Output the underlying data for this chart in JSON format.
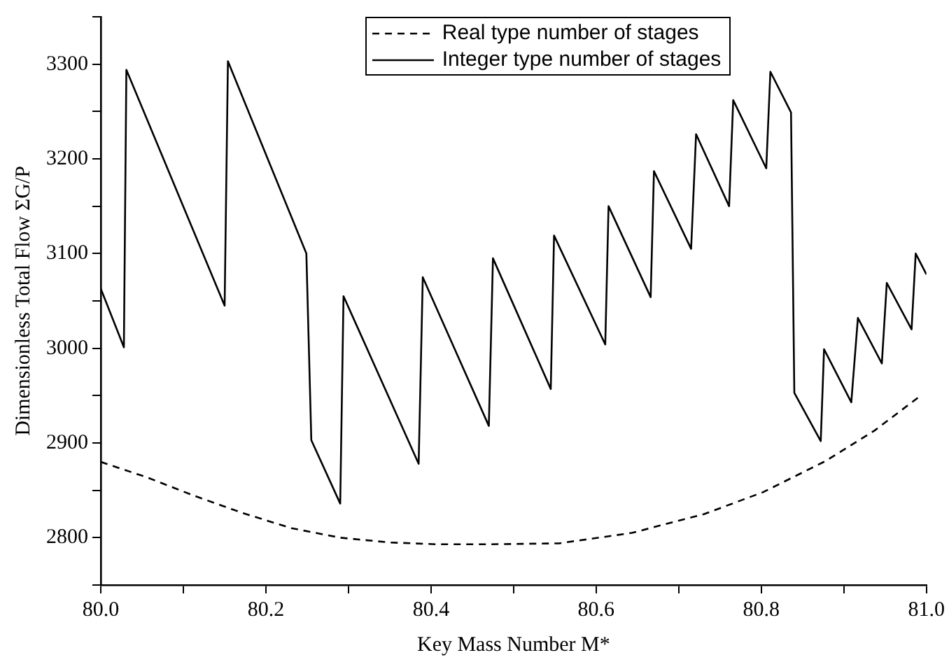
{
  "chart_data": {
    "type": "line",
    "xlabel": "Key Mass Number M*",
    "ylabel": "Dimensionless Total Flow ΣG/P",
    "xlim": [
      80.0,
      81.0
    ],
    "xticks": [
      {
        "value": 80.0,
        "label": "80.0"
      },
      {
        "value": 80.1,
        "label": null
      },
      {
        "value": 80.2,
        "label": "80.2"
      },
      {
        "value": 80.3,
        "label": null
      },
      {
        "value": 80.4,
        "label": "80.4"
      },
      {
        "value": 80.5,
        "label": null
      },
      {
        "value": 80.6,
        "label": "80.6"
      },
      {
        "value": 80.7,
        "label": null
      },
      {
        "value": 80.8,
        "label": "80.8"
      },
      {
        "value": 80.9,
        "label": null
      },
      {
        "value": 81.0,
        "label": "81.0"
      }
    ],
    "ylim": [
      2750,
      3350
    ],
    "yticks": [
      {
        "value": 2750,
        "label": null
      },
      2800,
      {
        "value": 2850,
        "label": null
      },
      2900,
      {
        "value": 2950,
        "label": null
      },
      3000,
      {
        "value": 3050,
        "label": null
      },
      3100,
      {
        "value": 3150,
        "label": null
      },
      3200,
      {
        "value": 3250,
        "label": null
      },
      3300,
      {
        "value": 3350,
        "label": null
      }
    ],
    "grid": false,
    "legend": "top right",
    "marker": "none",
    "series": [
      {
        "name": "Real type number of stages",
        "color": "#000000",
        "line_style": "dashed",
        "x": [
          80.0,
          80.055,
          80.114,
          80.172,
          80.231,
          80.29,
          80.349,
          80.408,
          80.466,
          80.555,
          80.643,
          80.731,
          80.802,
          80.878,
          80.937,
          80.99
        ],
        "values": [
          2880,
          2864,
          2844,
          2826,
          2810,
          2800,
          2795,
          2793,
          2793,
          2794,
          2805,
          2825,
          2848,
          2881,
          2913,
          2948
        ]
      },
      {
        "name": "Integer type number of stages",
        "color": "#000000",
        "line_style": "solid",
        "x": [
          80.0,
          80.028,
          80.031,
          80.15,
          80.154,
          80.249,
          80.255,
          80.29,
          80.294,
          80.385,
          80.39,
          80.47,
          80.475,
          80.545,
          80.549,
          80.611,
          80.615,
          80.666,
          80.67,
          80.715,
          80.721,
          80.761,
          80.766,
          80.806,
          80.811,
          80.836,
          80.84,
          80.872,
          80.876,
          80.909,
          80.917,
          80.946,
          80.952,
          80.982,
          80.987,
          81.0
        ],
        "values": [
          3063,
          3001,
          3294,
          3045,
          3303,
          3100,
          2903,
          2836,
          3055,
          2878,
          3075,
          2918,
          3095,
          2957,
          3119,
          3004,
          3150,
          3054,
          3187,
          3105,
          3226,
          3150,
          3262,
          3190,
          3292,
          3249,
          2953,
          2902,
          2999,
          2943,
          3032,
          2984,
          3069,
          3020,
          3100,
          3078
        ]
      }
    ]
  }
}
